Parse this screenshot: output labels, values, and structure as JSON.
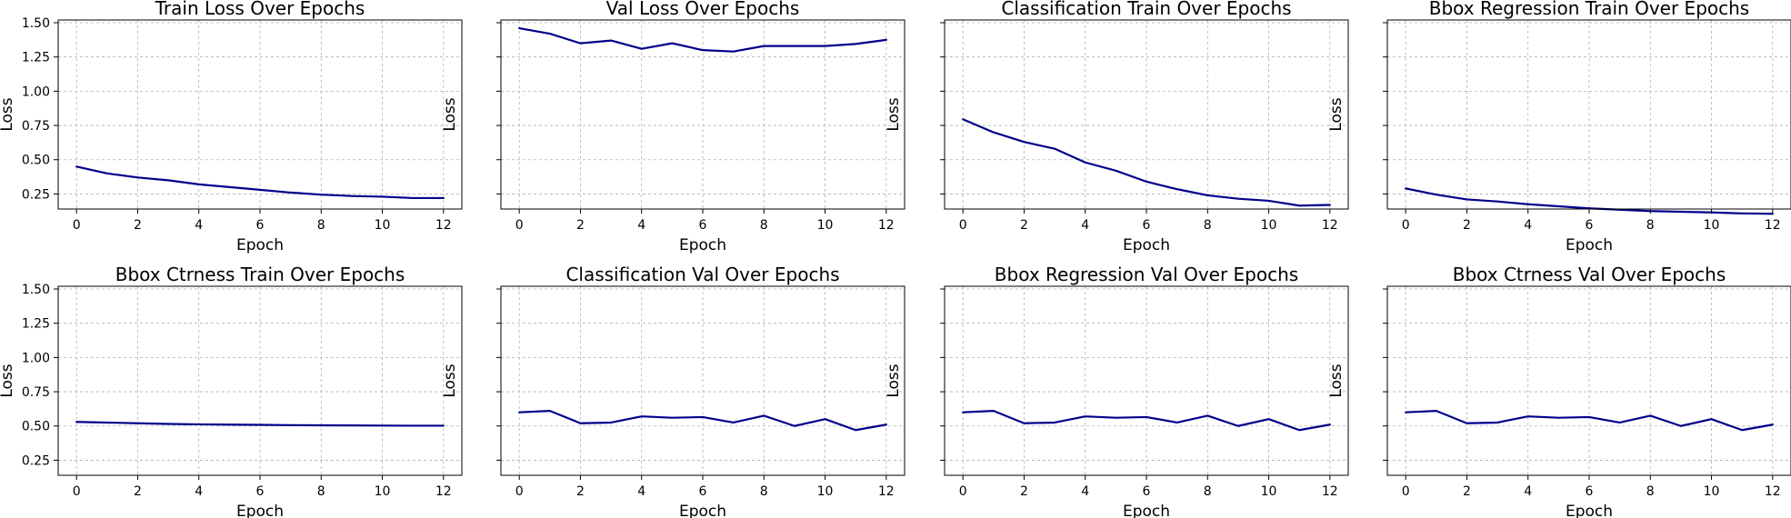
{
  "figure": {
    "background": "#ffffff",
    "line_color": "#00008b",
    "grid_color": "#b0b0b0"
  },
  "chart_data": [
    {
      "type": "line",
      "title": "Train Loss Over Epochs",
      "xlabel": "Epoch",
      "ylabel": "Loss",
      "xlim": [
        -0.6,
        12.6
      ],
      "ylim": [
        0.14,
        1.52
      ],
      "xticks": [
        "0",
        "2",
        "4",
        "6",
        "8",
        "10",
        "12"
      ],
      "yticks": [
        "0.25",
        "0.50",
        "0.75",
        "1.00",
        "1.25",
        "1.50"
      ],
      "show_ytick_labels": true,
      "grid": true,
      "x": [
        0,
        1,
        2,
        3,
        4,
        5,
        6,
        7,
        8,
        9,
        10,
        11,
        12
      ],
      "values": [
        0.45,
        0.4,
        0.37,
        0.35,
        0.32,
        0.3,
        0.28,
        0.26,
        0.245,
        0.235,
        0.23,
        0.22,
        0.22
      ]
    },
    {
      "type": "line",
      "title": "Val Loss Over Epochs",
      "xlabel": "Epoch",
      "ylabel": "Loss",
      "xlim": [
        -0.6,
        12.6
      ],
      "ylim": [
        0.14,
        1.52
      ],
      "xticks": [
        "0",
        "2",
        "4",
        "6",
        "8",
        "10",
        "12"
      ],
      "yticks": [
        "0.25",
        "0.50",
        "0.75",
        "1.00",
        "1.25",
        "1.50"
      ],
      "show_ytick_labels": false,
      "grid": true,
      "x": [
        0,
        1,
        2,
        3,
        4,
        5,
        6,
        7,
        8,
        9,
        10,
        11,
        12
      ],
      "values": [
        1.46,
        1.42,
        1.35,
        1.37,
        1.31,
        1.35,
        1.3,
        1.29,
        1.33,
        1.33,
        1.33,
        1.345,
        1.375
      ]
    },
    {
      "type": "line",
      "title": "Classification Train Over Epochs",
      "xlabel": "Epoch",
      "ylabel": "Loss",
      "xlim": [
        -0.6,
        12.6
      ],
      "ylim": [
        0.14,
        1.52
      ],
      "xticks": [
        "0",
        "2",
        "4",
        "6",
        "8",
        "10",
        "12"
      ],
      "yticks": [
        "0.25",
        "0.50",
        "0.75",
        "1.00",
        "1.25",
        "1.50"
      ],
      "show_ytick_labels": false,
      "grid": true,
      "x": [
        0,
        1,
        2,
        3,
        4,
        5,
        6,
        7,
        8,
        9,
        10,
        11,
        12
      ],
      "values": [
        0.795,
        0.7,
        0.63,
        0.58,
        0.48,
        0.42,
        0.34,
        0.285,
        0.24,
        0.215,
        0.2,
        0.165,
        0.17
      ]
    },
    {
      "type": "line",
      "title": "Bbox Regression Train Over Epochs",
      "xlabel": "Epoch",
      "ylabel": "Loss",
      "xlim": [
        -0.6,
        12.6
      ],
      "ylim": [
        0.14,
        1.52
      ],
      "xticks": [
        "0",
        "2",
        "4",
        "6",
        "8",
        "10",
        "12"
      ],
      "yticks": [
        "0.25",
        "0.50",
        "0.75",
        "1.00",
        "1.25",
        "1.50"
      ],
      "show_ytick_labels": false,
      "grid": true,
      "x": [
        0,
        1,
        2,
        3,
        4,
        5,
        6,
        7,
        8,
        9,
        10,
        11,
        12
      ],
      "values": [
        0.29,
        0.245,
        0.21,
        0.195,
        0.175,
        0.16,
        0.145,
        0.135,
        0.125,
        0.12,
        0.115,
        0.108,
        0.105
      ]
    },
    {
      "type": "line",
      "title": "Bbox Ctrness Train Over Epochs",
      "xlabel": "Epoch",
      "ylabel": "Loss",
      "xlim": [
        -0.6,
        12.6
      ],
      "ylim": [
        0.14,
        1.52
      ],
      "xticks": [
        "0",
        "2",
        "4",
        "6",
        "8",
        "10",
        "12"
      ],
      "yticks": [
        "0.25",
        "0.50",
        "0.75",
        "1.00",
        "1.25",
        "1.50"
      ],
      "show_ytick_labels": true,
      "grid": true,
      "x": [
        0,
        1,
        2,
        3,
        4,
        5,
        6,
        7,
        8,
        9,
        10,
        11,
        12
      ],
      "values": [
        0.53,
        0.525,
        0.52,
        0.515,
        0.512,
        0.51,
        0.508,
        0.506,
        0.505,
        0.504,
        0.503,
        0.502,
        0.502
      ]
    },
    {
      "type": "line",
      "title": "Classification Val Over Epochs",
      "xlabel": "Epoch",
      "ylabel": "Loss",
      "xlim": [
        -0.6,
        12.6
      ],
      "ylim": [
        0.14,
        1.52
      ],
      "xticks": [
        "0",
        "2",
        "4",
        "6",
        "8",
        "10",
        "12"
      ],
      "yticks": [
        "0.25",
        "0.50",
        "0.75",
        "1.00",
        "1.25",
        "1.50"
      ],
      "show_ytick_labels": false,
      "grid": true,
      "x": [
        0,
        1,
        2,
        3,
        4,
        5,
        6,
        7,
        8,
        9,
        10,
        11,
        12
      ],
      "values": [
        0.6,
        0.61,
        0.52,
        0.525,
        0.57,
        0.56,
        0.565,
        0.525,
        0.575,
        0.5,
        0.55,
        0.47,
        0.51
      ]
    },
    {
      "type": "line",
      "title": "Bbox Regression Val Over Epochs",
      "xlabel": "Epoch",
      "ylabel": "Loss",
      "xlim": [
        -0.6,
        12.6
      ],
      "ylim": [
        0.14,
        1.52
      ],
      "xticks": [
        "0",
        "2",
        "4",
        "6",
        "8",
        "10",
        "12"
      ],
      "yticks": [
        "0.25",
        "0.50",
        "0.75",
        "1.00",
        "1.25",
        "1.50"
      ],
      "show_ytick_labels": false,
      "grid": true,
      "x": [
        0,
        1,
        2,
        3,
        4,
        5,
        6,
        7,
        8,
        9,
        10,
        11,
        12
      ],
      "values": [
        0.6,
        0.61,
        0.52,
        0.525,
        0.57,
        0.56,
        0.565,
        0.525,
        0.575,
        0.5,
        0.55,
        0.47,
        0.51
      ]
    },
    {
      "type": "line",
      "title": "Bbox Ctrness Val Over Epochs",
      "xlabel": "Epoch",
      "ylabel": "Loss",
      "xlim": [
        -0.6,
        12.6
      ],
      "ylim": [
        0.14,
        1.52
      ],
      "xticks": [
        "0",
        "2",
        "4",
        "6",
        "8",
        "10",
        "12"
      ],
      "yticks": [
        "0.25",
        "0.50",
        "0.75",
        "1.00",
        "1.25",
        "1.50"
      ],
      "show_ytick_labels": false,
      "grid": true,
      "x": [
        0,
        1,
        2,
        3,
        4,
        5,
        6,
        7,
        8,
        9,
        10,
        11,
        12
      ],
      "values": [
        0.6,
        0.61,
        0.52,
        0.525,
        0.57,
        0.56,
        0.565,
        0.525,
        0.575,
        0.5,
        0.55,
        0.47,
        0.51
      ]
    }
  ]
}
